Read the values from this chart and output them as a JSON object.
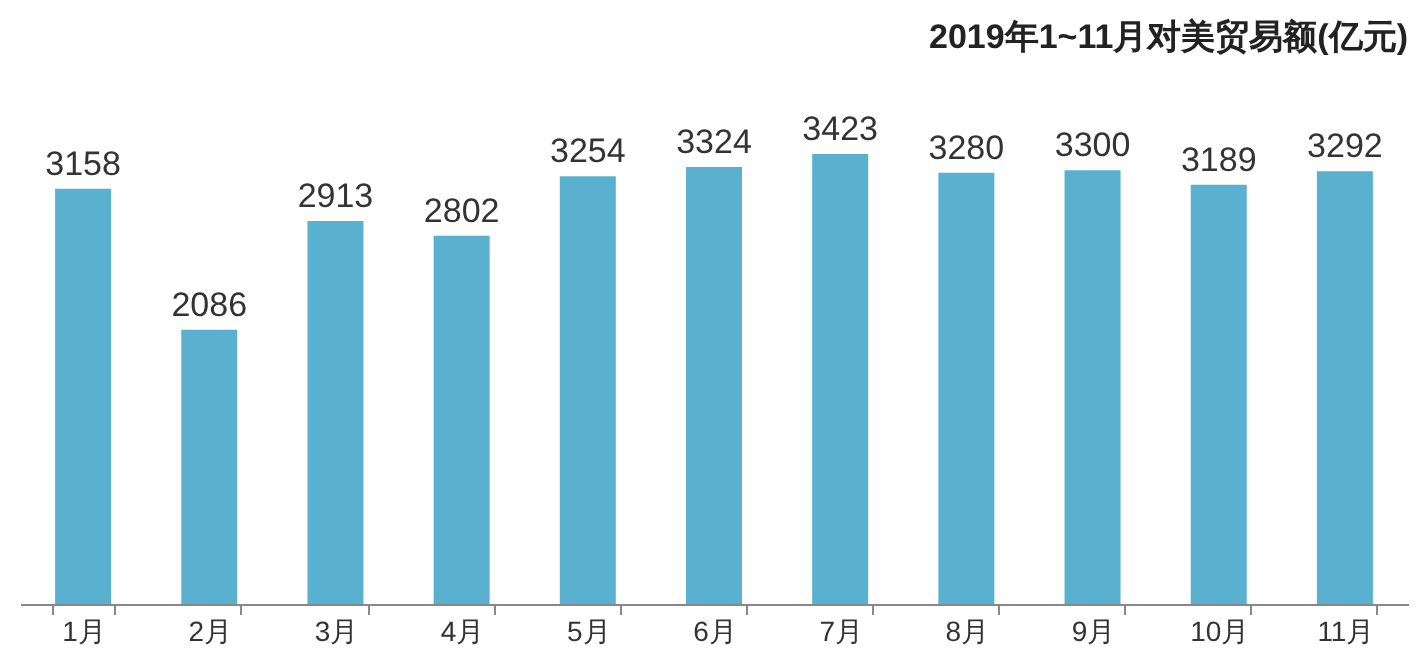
{
  "chart_data": {
    "type": "bar",
    "title": "2019年1~11月对美贸易额(亿元)",
    "categories": [
      "1月",
      "2月",
      "3月",
      "4月",
      "5月",
      "6月",
      "7月",
      "8月",
      "9月",
      "10月",
      "11月"
    ],
    "values": [
      3158,
      2086,
      2913,
      2802,
      3254,
      3324,
      3423,
      3280,
      3300,
      3189,
      3292
    ],
    "color": "#5ab1cf",
    "data_labels": true
  }
}
